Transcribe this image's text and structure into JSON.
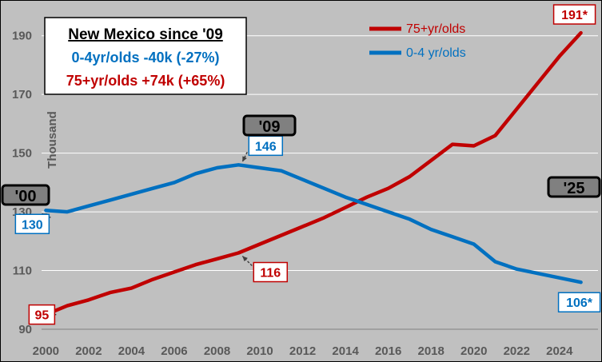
{
  "chart_data": {
    "type": "line",
    "title_box": {
      "line1": "New Mexico since '09",
      "line2": "0-4yr/olds -40k (-27%)",
      "line3": "75+yr/olds +74k (+65%)"
    },
    "ylabel": "Thousand",
    "xlabel": "",
    "ylim": [
      90,
      200
    ],
    "xlim": [
      1999.8,
      2025.8
    ],
    "y_ticks": [
      90,
      110,
      130,
      150,
      170,
      190
    ],
    "x_ticks": [
      2000,
      2002,
      2004,
      2006,
      2008,
      2010,
      2012,
      2014,
      2016,
      2018,
      2020,
      2022,
      2024
    ],
    "grid": true,
    "legend_position": "top-right",
    "background_color": "#c0c0c0",
    "series": [
      {
        "name": "75+yr/olds",
        "color": "#c00000",
        "x": [
          2000,
          2001,
          2002,
          2003,
          2004,
          2005,
          2006,
          2007,
          2008,
          2009,
          2010,
          2011,
          2012,
          2013,
          2014,
          2015,
          2016,
          2017,
          2018,
          2019,
          2020,
          2021,
          2022,
          2023,
          2024,
          2025
        ],
        "values": [
          95,
          98,
          100,
          102.5,
          104,
          107,
          109.5,
          112,
          114,
          116,
          119,
          122,
          125,
          128,
          131.5,
          135,
          138,
          142,
          147.5,
          153,
          152.5,
          156,
          165,
          174,
          183,
          191
        ]
      },
      {
        "name": "0-4 yr/olds",
        "color": "#0070c0",
        "x": [
          2000,
          2001,
          2002,
          2003,
          2004,
          2005,
          2006,
          2007,
          2008,
          2009,
          2010,
          2011,
          2012,
          2013,
          2014,
          2015,
          2016,
          2017,
          2018,
          2019,
          2020,
          2021,
          2022,
          2023,
          2024,
          2025
        ],
        "values": [
          130.5,
          130,
          132,
          134,
          136,
          138,
          140,
          143,
          145,
          146,
          145,
          144,
          141,
          138,
          135,
          132.5,
          130,
          127.5,
          124,
          121.5,
          119,
          113,
          110.5,
          109,
          107.5,
          106
        ]
      }
    ],
    "annotations": [
      {
        "id": "red-2000",
        "text": "95",
        "x": 2000,
        "y": 95,
        "color": "#c00000"
      },
      {
        "id": "red-2009",
        "text": "116",
        "x": 2009,
        "y": 116,
        "color": "#c00000"
      },
      {
        "id": "red-2025",
        "text": "191*",
        "x": 2025,
        "y": 191,
        "color": "#c00000"
      },
      {
        "id": "blue-2000",
        "text": "130",
        "x": 2000,
        "y": 130.5,
        "color": "#0070c0"
      },
      {
        "id": "blue-2009",
        "text": "146",
        "x": 2009,
        "y": 146,
        "color": "#0070c0"
      },
      {
        "id": "blue-2025",
        "text": "106*",
        "x": 2025,
        "y": 106,
        "color": "#0070c0"
      }
    ],
    "year_markers": [
      {
        "id": "y00",
        "text": "'00"
      },
      {
        "id": "y09",
        "text": "'09"
      },
      {
        "id": "y25",
        "text": "'25"
      }
    ]
  }
}
